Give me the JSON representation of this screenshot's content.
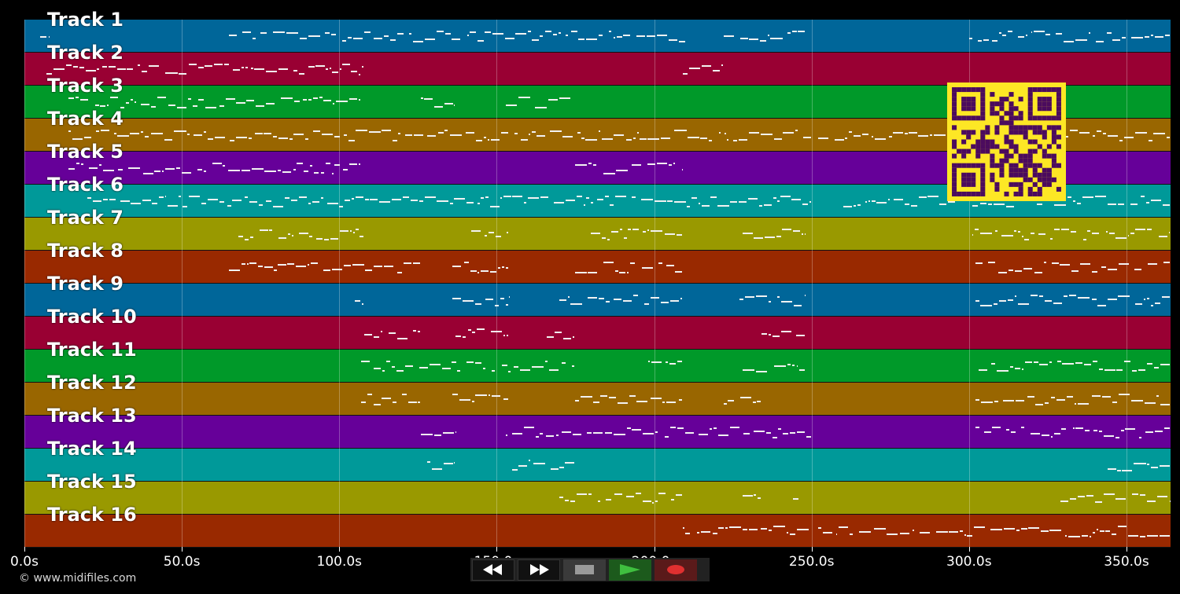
{
  "tracks": [
    {
      "label": "Track 1",
      "color": "#006699"
    },
    {
      "label": "Track 2",
      "color": "#990033"
    },
    {
      "label": "Track 3",
      "color": "#009929"
    },
    {
      "label": "Track 4",
      "color": "#996600"
    },
    {
      "label": "Track 5",
      "color": "#660099"
    },
    {
      "label": "Track 6",
      "color": "#009999"
    },
    {
      "label": "Track 7",
      "color": "#999900"
    },
    {
      "label": "Track 8",
      "color": "#992900"
    },
    {
      "label": "Track 9",
      "color": "#006699"
    },
    {
      "label": "Track 10",
      "color": "#990033"
    },
    {
      "label": "Track 11",
      "color": "#009929"
    },
    {
      "label": "Track 12",
      "color": "#996600"
    },
    {
      "label": "Track 13",
      "color": "#660099"
    },
    {
      "label": "Track 14",
      "color": "#009999"
    },
    {
      "label": "Track 15",
      "color": "#999900"
    },
    {
      "label": "Track 16",
      "color": "#992900"
    }
  ],
  "time_axis": {
    "ticks": [
      "0.0s",
      "50.0s",
      "100.0s",
      "150.0s",
      "200.0s",
      "250.0s",
      "300.0s",
      "350.0s"
    ],
    "tick_seconds": [
      0,
      50,
      100,
      150,
      200,
      250,
      300,
      350
    ],
    "duration_seconds": 364
  },
  "footer": {
    "copyright": "© www.midifiles.com"
  },
  "transport": {
    "rewind_icon": "rewind-icon",
    "forward_icon": "fast-forward-icon",
    "stop_icon": "stop-icon",
    "play_icon": "play-icon",
    "record_icon": "record-icon"
  },
  "qr": {
    "fg": "#4b0b5e",
    "bg": "#fde725"
  }
}
